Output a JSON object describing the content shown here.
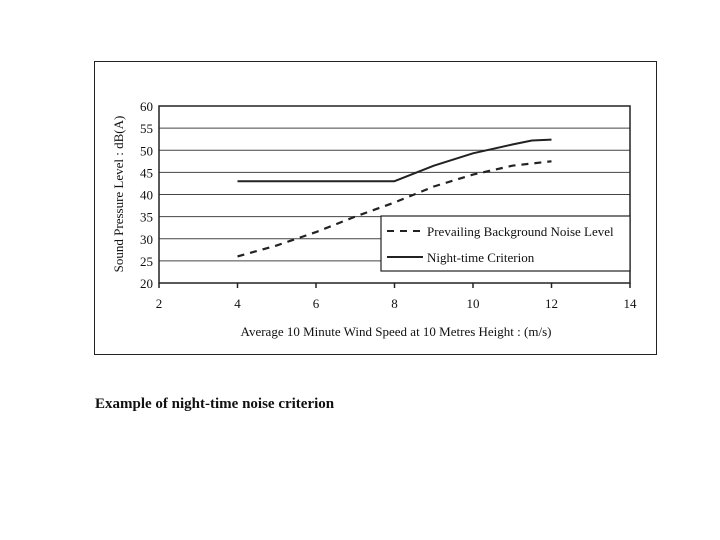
{
  "caption": "Example of night-time noise criterion",
  "chart_data": {
    "type": "line",
    "title": "",
    "xlabel": "Average 10 Minute Wind Speed at 10 Metres Height : (m/s)",
    "ylabel": "Sound Pressure Level : dB(A)",
    "xlim": [
      2,
      14
    ],
    "ylim": [
      20,
      60
    ],
    "xticks": [
      2,
      4,
      6,
      8,
      10,
      12,
      14
    ],
    "yticks": [
      20,
      25,
      30,
      35,
      40,
      45,
      50,
      55,
      60
    ],
    "grid": "horizontal",
    "legend_position": "bottom-right",
    "series": [
      {
        "name": "Prevailing Background Noise Level",
        "style": "dashed",
        "color": "#222222",
        "x": [
          4,
          5,
          6,
          7,
          8,
          9,
          10,
          11,
          12
        ],
        "y": [
          26,
          28.5,
          31.5,
          35,
          38.2,
          41.8,
          44.5,
          46.5,
          47.5
        ]
      },
      {
        "name": "Night-time Criterion",
        "style": "solid",
        "color": "#222222",
        "x": [
          4,
          5,
          6,
          7,
          8,
          9,
          10,
          11,
          11.5,
          12
        ],
        "y": [
          43,
          43,
          43,
          43,
          43,
          46.5,
          49.3,
          51.3,
          52.2,
          52.4
        ]
      }
    ]
  }
}
